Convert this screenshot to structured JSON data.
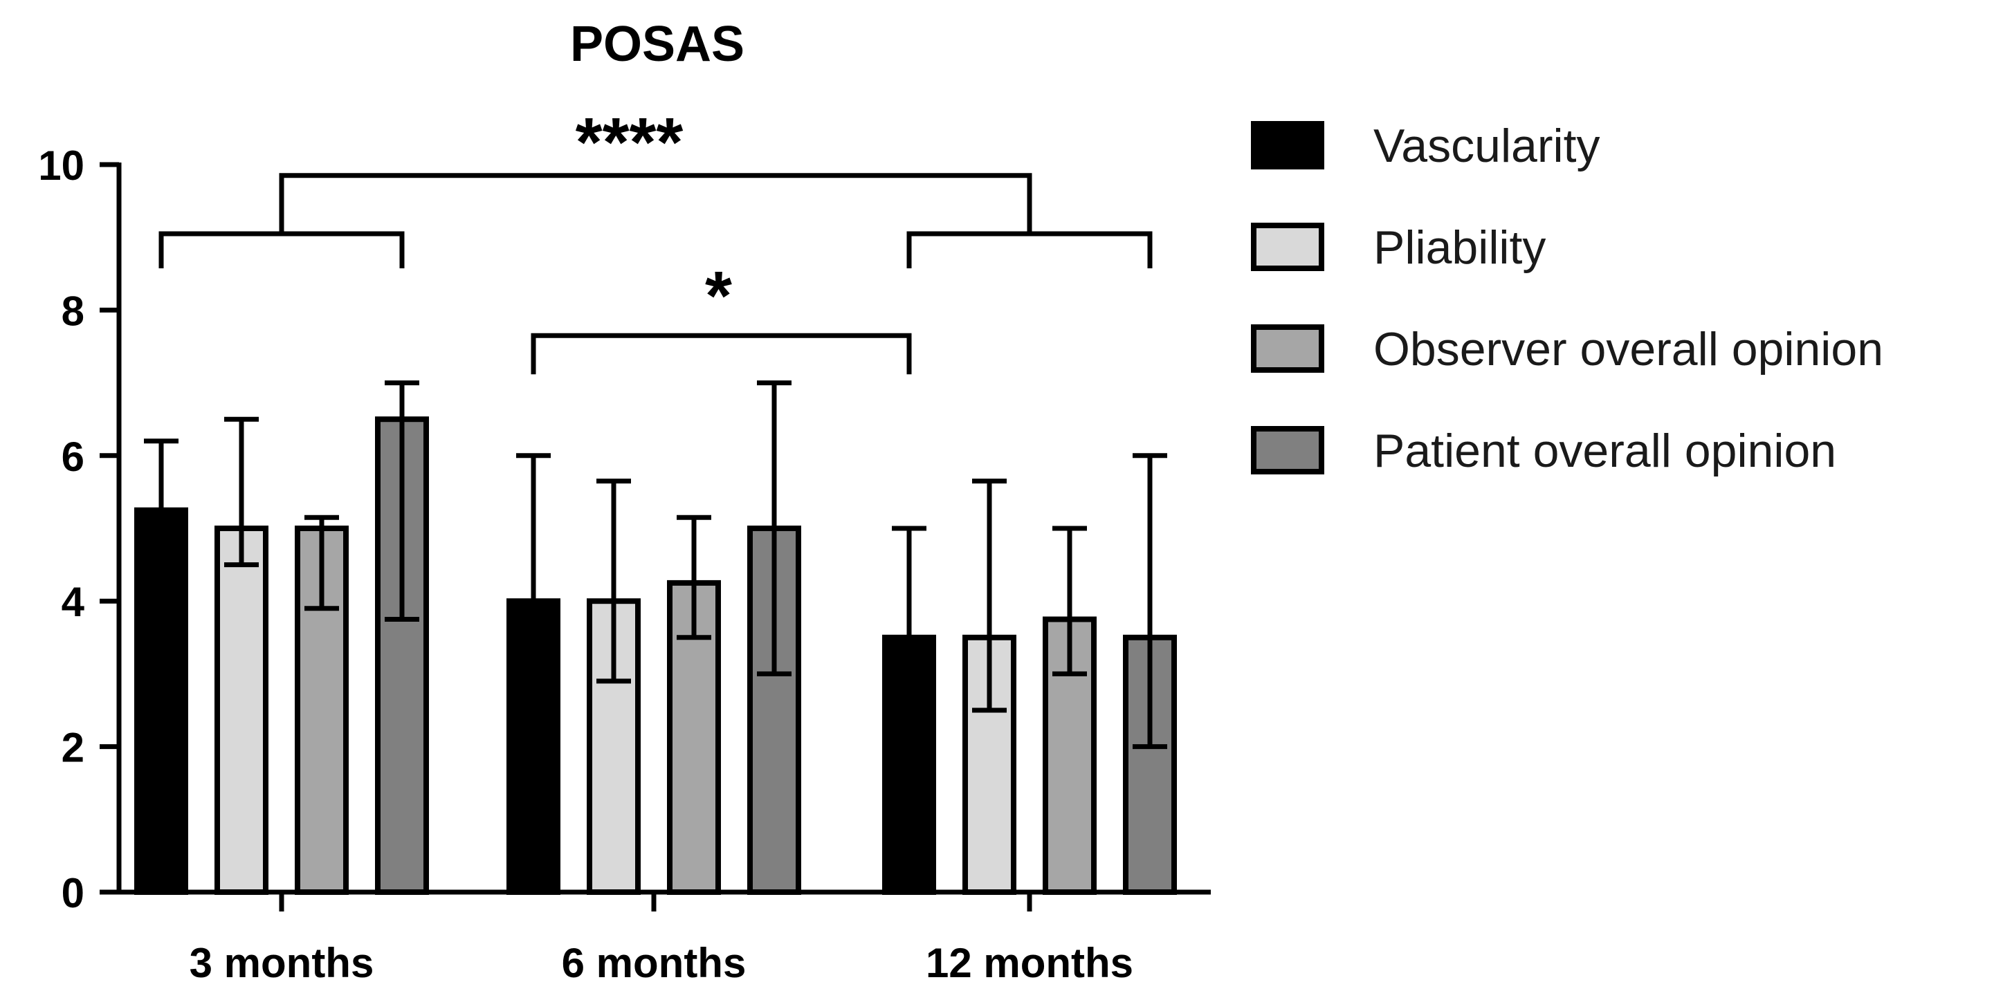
{
  "chart_data": {
    "type": "bar",
    "title": "POSAS",
    "xlabel": "",
    "ylabel": "",
    "ylim": [
      0,
      10
    ],
    "yticks": [
      0,
      2,
      4,
      6,
      8,
      10
    ],
    "categories": [
      "3 months",
      "6 months",
      "12 months"
    ],
    "series": [
      {
        "name": "Vascularity",
        "color": "#000000",
        "values": [
          5.25,
          4.0,
          3.5
        ],
        "err_low": [
          null,
          null,
          null
        ],
        "err_high": [
          6.2,
          6.0,
          5.0
        ]
      },
      {
        "name": "Pliability",
        "color": "#d9d9d9",
        "values": [
          5.0,
          4.0,
          3.5
        ],
        "err_low": [
          4.5,
          2.9,
          2.5
        ],
        "err_high": [
          6.5,
          5.65,
          5.65
        ]
      },
      {
        "name": "Observer overall opinion",
        "color": "#a6a6a6",
        "values": [
          5.0,
          4.25,
          3.75
        ],
        "err_low": [
          3.9,
          3.5,
          3.0
        ],
        "err_high": [
          5.15,
          5.15,
          5.0
        ]
      },
      {
        "name": "Patient overall opinion",
        "color": "#808080",
        "values": [
          6.5,
          5.0,
          3.5
        ],
        "err_low": [
          3.75,
          3.0,
          2.0
        ],
        "err_high": [
          7.0,
          7.0,
          6.0
        ]
      }
    ],
    "significance": [
      {
        "label": "****",
        "from_group": "3 months",
        "to_group": "12 months",
        "level": 9.85,
        "sublevel": 9.05
      },
      {
        "label": "*",
        "from_series": [
          "6 months",
          "Vascularity"
        ],
        "to_series": [
          "12 months",
          "Vascularity"
        ],
        "level": 7.65
      }
    ],
    "legend_position": "right",
    "grid": false
  }
}
